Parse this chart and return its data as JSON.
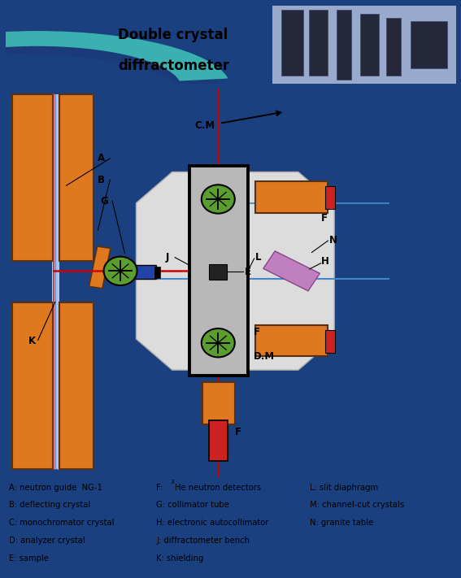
{
  "fig_width": 5.67,
  "fig_height": 7.11,
  "dpi": 100,
  "outer_border": "#1a4080",
  "header_bg": "#ffffff",
  "teal": "#3ab0b0",
  "dark_navy": "#1a3a7a",
  "diagram_bg": "#c8c8c8",
  "orange": "#e07820",
  "green_crystal": "#5a9e30",
  "red_beam": "#cc0000",
  "blue_beam": "#4488cc",
  "light_blue_guide": "#aaccee",
  "collimator_blue": "#2244aa",
  "sample_dark": "#222222",
  "purple_auto": "#c080c0",
  "legend_bg": "#c8c8c8",
  "legend_col1": [
    "A: neutron guide  NG-1",
    "B: deflecting crystal",
    "C: monochromator crystal",
    "D: analyzer crystal",
    "E: sample"
  ],
  "legend_col2_plain": [
    "G: collimator tube",
    "H: electronic autocollimator",
    "J: diffractometer bench",
    "K: shielding"
  ],
  "legend_col3": [
    "L: slit diaphragm",
    "M: channel-cut crystals",
    "N: granite table"
  ],
  "title_line1": "Double crystal",
  "title_line2": "diffractometer"
}
